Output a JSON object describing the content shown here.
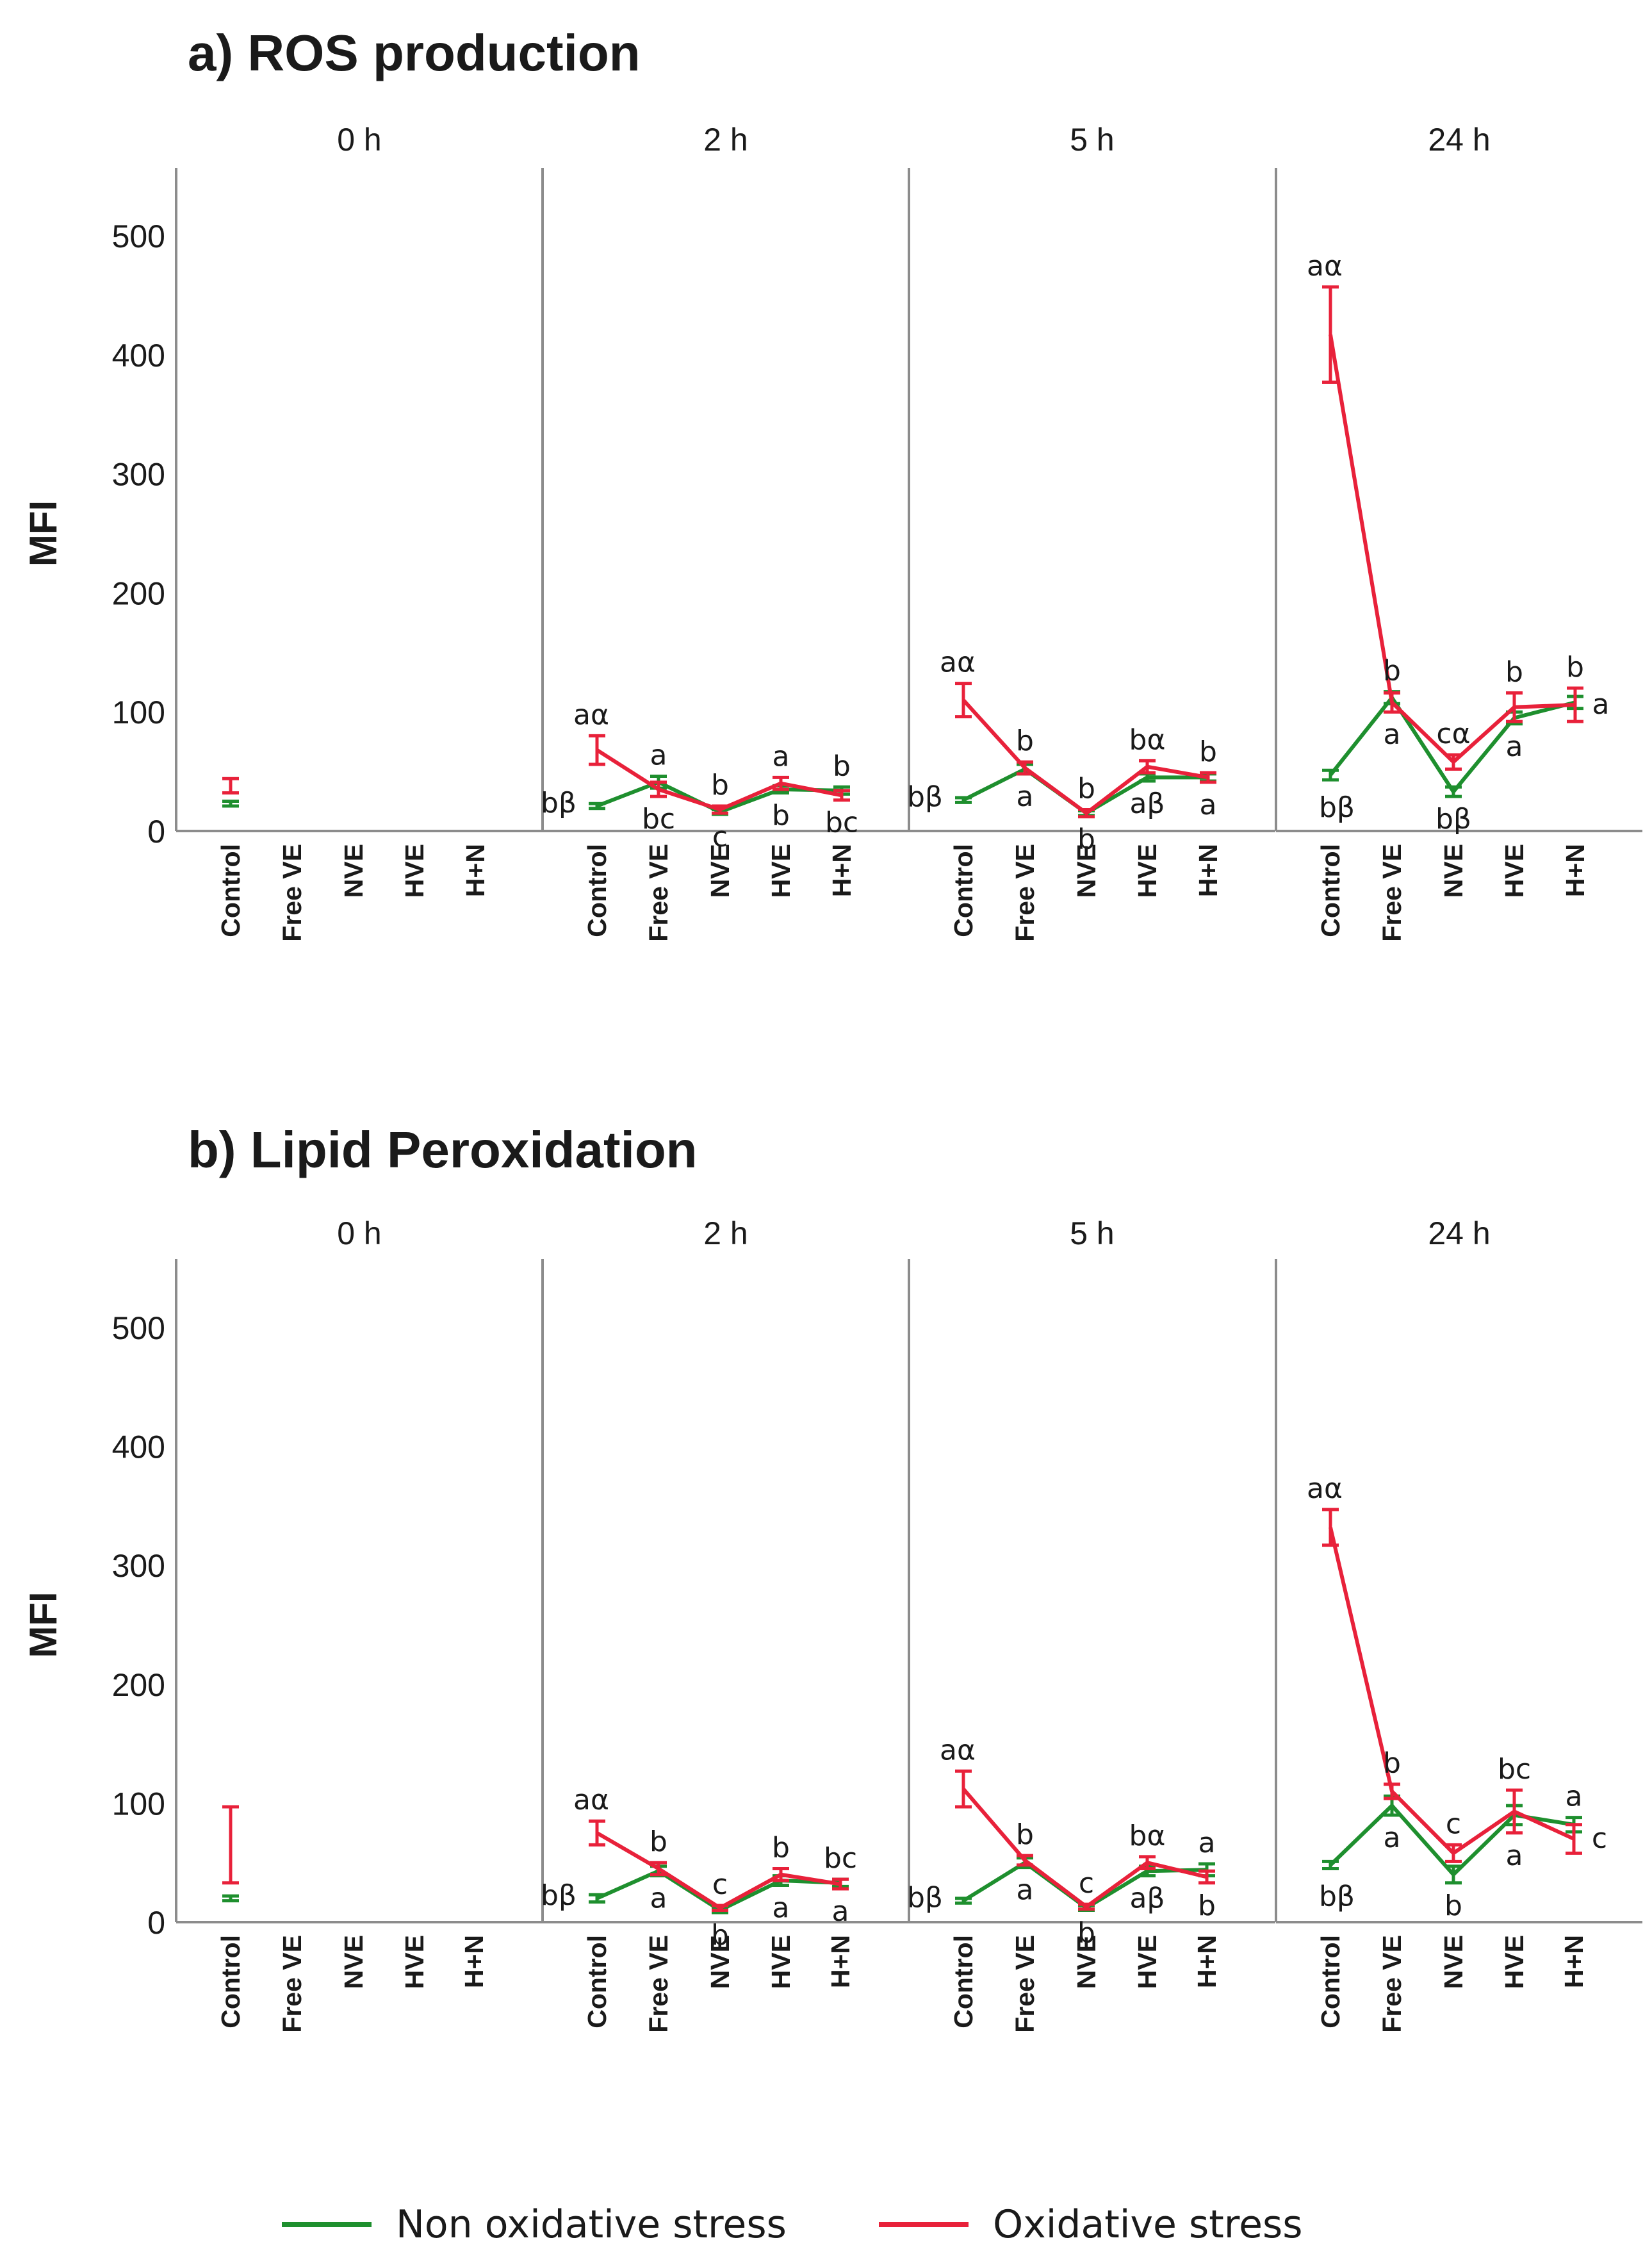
{
  "legend": {
    "non_oxidative": "Non oxidative stress",
    "oxidative": "Oxidative stress"
  },
  "colors": {
    "non_oxidative": "#1e8f2e",
    "oxidative": "#e8213a"
  },
  "chart_data": [
    {
      "type": "line",
      "title": "a) ROS production",
      "ylabel": "MFI",
      "ylim": [
        0,
        550
      ],
      "yticks": [
        0,
        100,
        200,
        300,
        400,
        500
      ],
      "categories": [
        "Control",
        "Free VE",
        "NVE",
        "HVE",
        "H+N"
      ],
      "facets": [
        {
          "label": "0 h",
          "series": [
            {
              "name": "Non oxidative stress",
              "values": [
                23,
                null,
                null,
                null,
                null
              ],
              "err": [
                2,
                null,
                null,
                null,
                null
              ]
            },
            {
              "name": "Oxidative stress",
              "values": [
                38,
                null,
                null,
                null,
                null
              ],
              "err": [
                6,
                null,
                null,
                null,
                null
              ]
            }
          ],
          "letters": {
            "Non oxidative stress": [
              "",
              "",
              "",
              "",
              ""
            ],
            "Oxidative stress": [
              "",
              "",
              "",
              "",
              ""
            ]
          }
        },
        {
          "label": "2 h",
          "series": [
            {
              "name": "Non oxidative stress",
              "values": [
                21,
                41,
                16,
                35,
                34
              ],
              "err": [
                2,
                5,
                2,
                3,
                3
              ]
            },
            {
              "name": "Oxidative stress",
              "values": [
                68,
                35,
                18,
                40,
                30
              ],
              "err": [
                12,
                6,
                3,
                5,
                4
              ]
            }
          ],
          "letters": {
            "Non oxidative stress": [
              "bβ",
              "bc",
              "c",
              "b",
              "bc"
            ],
            "Oxidative stress": [
              "aα",
              "a",
              "b",
              "a",
              "b"
            ]
          }
        },
        {
          "label": "5 h",
          "series": [
            {
              "name": "Non oxidative stress",
              "values": [
                26,
                52,
                15,
                45,
                45
              ],
              "err": [
                2,
                4,
                2,
                3,
                3
              ]
            },
            {
              "name": "Oxidative stress",
              "values": [
                110,
                53,
                15,
                54,
                45
              ],
              "err": [
                14,
                5,
                3,
                5,
                4
              ]
            }
          ],
          "letters": {
            "Non oxidative stress": [
              "bβ",
              "a",
              "b",
              "aβ",
              "a"
            ],
            "Oxidative stress": [
              "aα",
              "b",
              "b",
              "bα",
              "b"
            ]
          }
        },
        {
          "label": "24 h",
          "series": [
            {
              "name": "Non oxidative stress",
              "values": [
                47,
                112,
                33,
                95,
                108
              ],
              "err": [
                4,
                5,
                4,
                5,
                5
              ]
            },
            {
              "name": "Oxidative stress",
              "values": [
                417,
                108,
                58,
                104,
                106
              ],
              "err": [
                40,
                8,
                6,
                12,
                14
              ]
            }
          ],
          "letters": {
            "Non oxidative stress": [
              "bβ",
              "a",
              "bβ",
              "a",
              ""
            ],
            "Oxidative stress": [
              "aα",
              "b",
              "cα",
              "b",
              "b"
            ],
            "extra": [
              {
                "text": "a",
                "index": 4
              }
            ]
          }
        }
      ]
    },
    {
      "type": "line",
      "title": "b) Lipid Peroxidation",
      "ylabel": "MFI",
      "ylim": [
        0,
        550
      ],
      "yticks": [
        0,
        100,
        200,
        300,
        400,
        500
      ],
      "categories": [
        "Control",
        "Free VE",
        "NVE",
        "HVE",
        "H+N"
      ],
      "facets": [
        {
          "label": "0 h",
          "series": [
            {
              "name": "Non oxidative stress",
              "values": [
                20,
                null,
                null,
                null,
                null
              ],
              "err": [
                2,
                null,
                null,
                null,
                null
              ]
            },
            {
              "name": "Oxidative stress",
              "values": [
                65,
                null,
                null,
                null,
                null
              ],
              "err": [
                32,
                null,
                null,
                null,
                null
              ]
            }
          ],
          "letters": {
            "Non oxidative stress": [
              "",
              "",
              "",
              "",
              ""
            ],
            "Oxidative stress": [
              "",
              "",
              "",
              "",
              ""
            ]
          }
        },
        {
          "label": "2 h",
          "series": [
            {
              "name": "Non oxidative stress",
              "values": [
                20,
                43,
                10,
                35,
                33
              ],
              "err": [
                3,
                4,
                2,
                4,
                3
              ]
            },
            {
              "name": "Oxidative stress",
              "values": [
                75,
                45,
                12,
                40,
                32
              ],
              "err": [
                10,
                5,
                2,
                5,
                4
              ]
            }
          ],
          "letters": {
            "Non oxidative stress": [
              "bβ",
              "a",
              "b",
              "a",
              "a"
            ],
            "Oxidative stress": [
              "aα",
              "b",
              "c",
              "b",
              "bc"
            ]
          }
        },
        {
          "label": "5 h",
          "series": [
            {
              "name": "Non oxidative stress",
              "values": [
                18,
                50,
                12,
                43,
                44
              ],
              "err": [
                2,
                4,
                2,
                4,
                5
              ]
            },
            {
              "name": "Oxidative stress",
              "values": [
                112,
                52,
                13,
                50,
                38
              ],
              "err": [
                15,
                4,
                2,
                5,
                5
              ]
            }
          ],
          "letters": {
            "Non oxidative stress": [
              "bβ",
              "a",
              "b",
              "aβ",
              "b"
            ],
            "Oxidative stress": [
              "aα",
              "b",
              "c",
              "bα",
              "a"
            ]
          }
        },
        {
          "label": "24 h",
          "series": [
            {
              "name": "Non oxidative stress",
              "values": [
                48,
                98,
                40,
                90,
                82
              ],
              "err": [
                3,
                8,
                7,
                8,
                6
              ]
            },
            {
              "name": "Oxidative stress",
              "values": [
                332,
                110,
                58,
                93,
                70
              ],
              "err": [
                15,
                6,
                7,
                18,
                12
              ]
            }
          ],
          "letters": {
            "Non oxidative stress": [
              "bβ",
              "a",
              "b",
              "a",
              ""
            ],
            "Oxidative stress": [
              "aα",
              "b",
              "c",
              "bc",
              "a"
            ],
            "extra": [
              {
                "text": "c",
                "index": 4
              }
            ]
          }
        }
      ]
    }
  ]
}
